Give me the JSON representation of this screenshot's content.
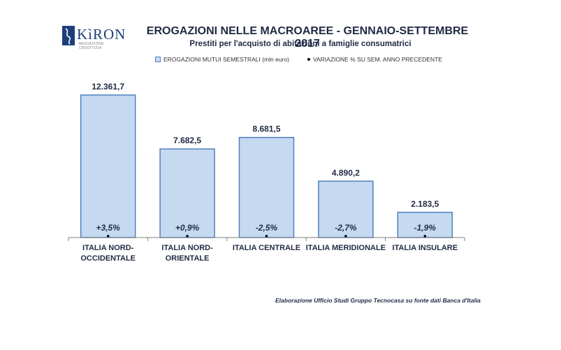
{
  "logo": {
    "name": "KìRON",
    "tagline": "MEDIAZIONE CREDITIZIA"
  },
  "title": "EROGAZIONI NELLE MACROAREE - GENNAIO-SETTEMBRE 2017",
  "subtitle": "Prestiti per l'acquisto di abitazioni a famiglie consumatrici",
  "legend": {
    "series_label": "EROGAZIONI MUTUI SEMESTRALI  (mln euro)",
    "variation_label": "VARIAZIONE % SU SEM. ANNO PRECEDENTE"
  },
  "footer": "Elaborazione Ufficio Studi Gruppo Tecnocasa su fonte dati Banca d'Italia",
  "colors": {
    "bar_fill": "#c5d9f1",
    "bar_stroke": "#4f81bd",
    "text": "#1f2a44",
    "axis": "#7f7f7f"
  },
  "chart_data": {
    "type": "bar",
    "categories": [
      [
        "ITALIA NORD-",
        "OCCIDENTALE"
      ],
      [
        "ITALIA NORD-",
        "ORIENTALE"
      ],
      [
        "ITALIA CENTRALE"
      ],
      [
        "ITALIA MERIDIONALE"
      ],
      [
        "ITALIA INSULARE"
      ]
    ],
    "series": [
      {
        "name": "EROGAZIONI MUTUI SEMESTRALI  (mln euro)",
        "values": [
          12361.7,
          7682.5,
          8681.5,
          4890.2,
          2183.5
        ],
        "labels": [
          "12.361,7",
          "7.682,5",
          "8.681,5",
          "4.890,2",
          "2.183,5"
        ]
      },
      {
        "name": "VARIAZIONE % SU SEM. ANNO PRECEDENTE",
        "values": [
          3.5,
          0.9,
          -2.5,
          -2.7,
          -1.9
        ],
        "labels": [
          "+3,5%",
          "+0,9%",
          "-2,5%",
          "-2,7%",
          "-1,9%"
        ]
      }
    ],
    "ylim": [
      0,
      12361.7
    ],
    "grid": false
  }
}
